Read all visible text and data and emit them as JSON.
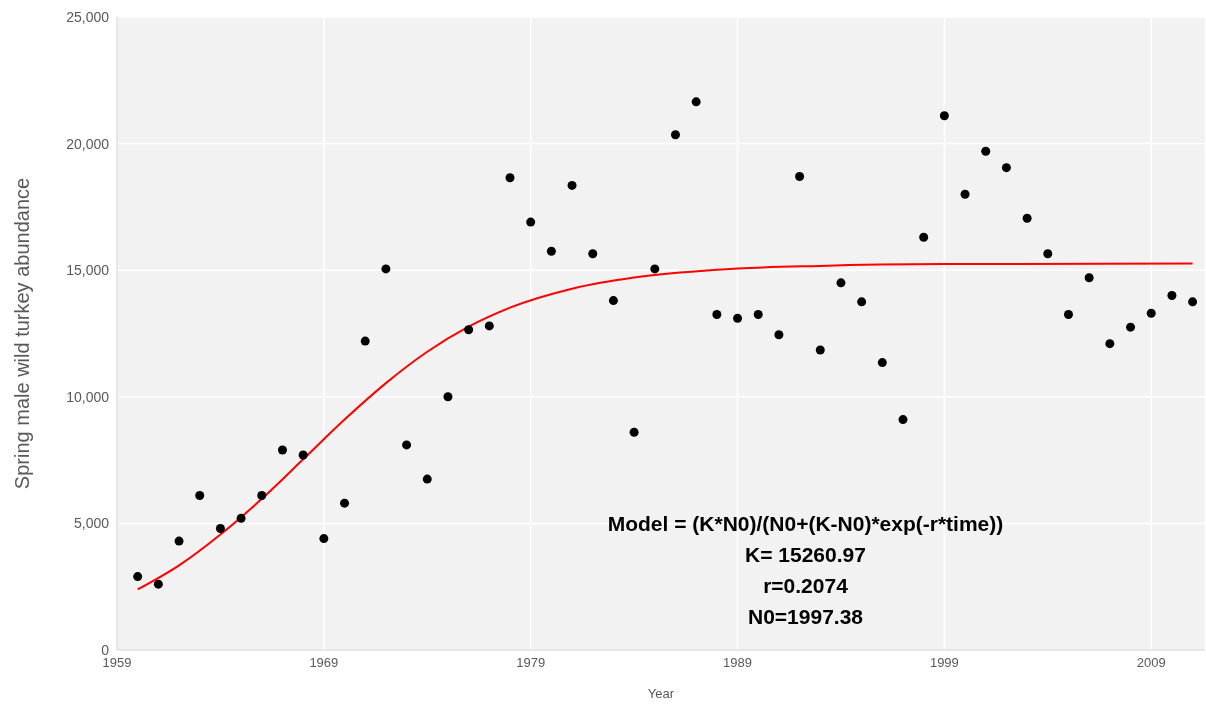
{
  "chart_data": {
    "type": "scatter",
    "xlabel": "Year",
    "ylabel": "Spring male wild turkey abundance",
    "xlim": [
      1959,
      2011.6
    ],
    "xticks": [
      1959,
      1969,
      1979,
      1989,
      1999,
      2009
    ],
    "ylim": [
      0,
      25000
    ],
    "yticks": [
      0,
      {
        "value": 5000,
        "label": "5,000"
      },
      {
        "value": 10000,
        "label": "10,000"
      },
      {
        "value": 15000,
        "label": "15,000"
      },
      {
        "value": 20000,
        "label": "20,000"
      },
      {
        "value": 25000,
        "label": "25,000"
      }
    ],
    "grid": true,
    "annotations": [
      "Model = (K*N0)/(N0+(K-N0)*exp(-r*time))",
      "K= 15260.97",
      "r=0.2074",
      "N0=1997.38"
    ],
    "series": [
      {
        "marker": "circle",
        "color": "#000000",
        "x": [
          1960,
          1961,
          1962,
          1963,
          1964,
          1965,
          1966,
          1967,
          1968,
          1969,
          1970,
          1971,
          1972,
          1973,
          1974,
          1975,
          1976,
          1977,
          1978,
          1979,
          1980,
          1981,
          1982,
          1983,
          1984,
          1985,
          1986,
          1987,
          1988,
          1989,
          1990,
          1991,
          1992,
          1993,
          1994,
          1995,
          1996,
          1997,
          1998,
          1999,
          2000,
          2001,
          2002,
          2003,
          2004,
          2005,
          2006,
          2007,
          2008,
          2009,
          2010,
          2011
        ],
        "values": [
          2900,
          2600,
          4300,
          6100,
          4800,
          5200,
          6100,
          7900,
          7700,
          4400,
          5800,
          12200,
          15050,
          8100,
          6750,
          10000,
          12650,
          12800,
          18650,
          16900,
          15750,
          18350,
          15650,
          13800,
          8600,
          15050,
          20350,
          21650,
          13250,
          13100,
          13250,
          12450,
          18700,
          11850,
          14500,
          13750,
          11350,
          9100,
          16300,
          21100,
          18000,
          19700,
          19050,
          17050,
          15650,
          13250,
          14700,
          12100,
          12750,
          13300,
          14000,
          13750
        ]
      },
      {
        "type": "line",
        "marker": "none",
        "color": "#ff0000",
        "x": [
          1960,
          1962,
          1964,
          1966,
          1968,
          1970,
          1972,
          1974,
          1976,
          1978,
          1981,
          1984,
          1988,
          1993,
          1999,
          2011
        ],
        "values": [
          2390,
          3340,
          4560,
          5970,
          7530,
          9100,
          10540,
          11780,
          12770,
          13520,
          14270,
          14710,
          15020,
          15170,
          15240,
          15260
        ]
      }
    ]
  }
}
